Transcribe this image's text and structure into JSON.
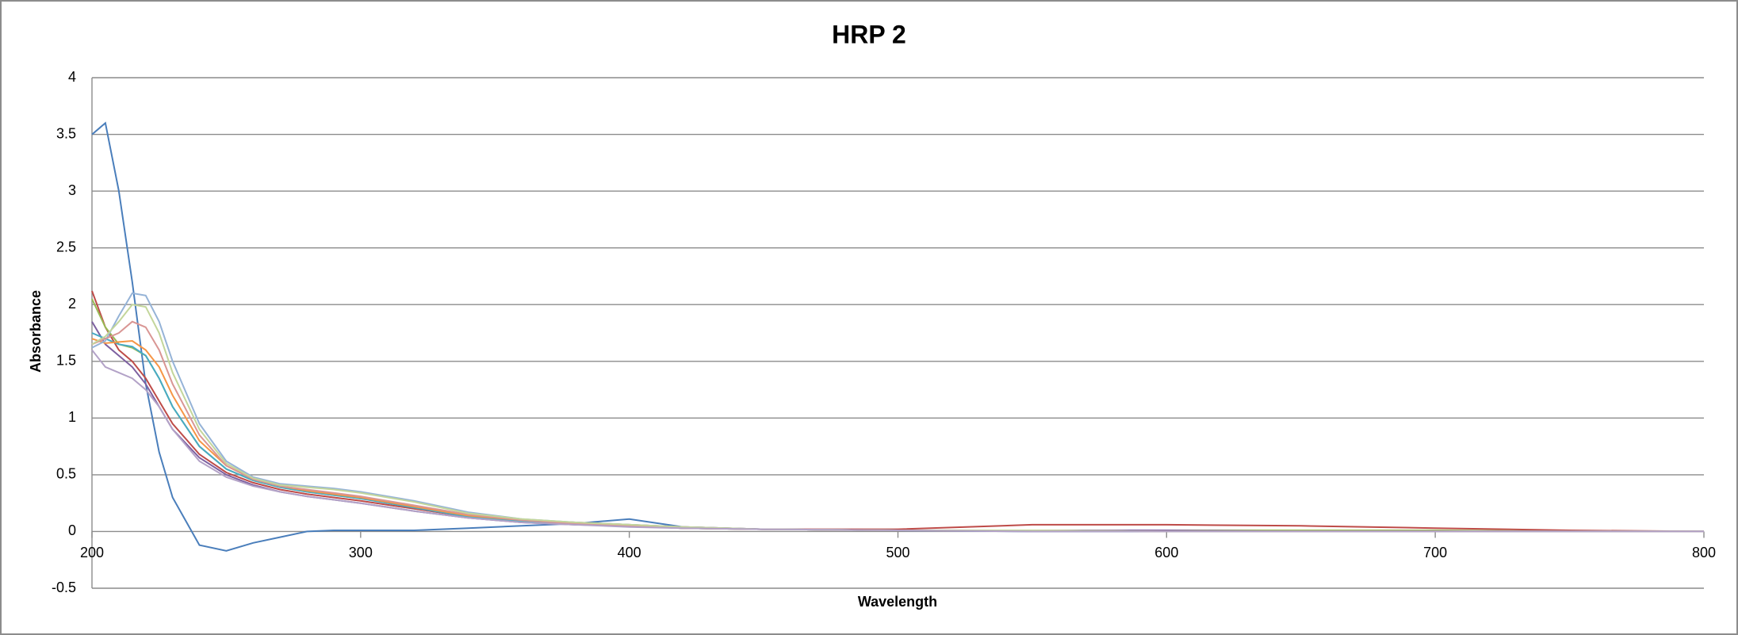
{
  "chart_data": {
    "type": "line",
    "title": "HRP 2",
    "x_label": "Wavelength",
    "y_label": "Absorbance",
    "x": [
      200,
      205,
      210,
      215,
      220,
      225,
      230,
      240,
      250,
      260,
      270,
      280,
      290,
      300,
      320,
      340,
      360,
      380,
      400,
      420,
      450,
      500,
      550,
      600,
      650,
      700,
      750,
      800
    ],
    "xlim": [
      200,
      800
    ],
    "xticks": [
      200,
      300,
      400,
      500,
      600,
      700,
      800
    ],
    "ylim": [
      -0.5,
      4
    ],
    "yticks": [
      -0.5,
      0,
      0.5,
      1,
      1.5,
      2,
      2.5,
      3,
      3.5,
      4
    ],
    "grid": true,
    "series": [
      {
        "color": "#4a7ebb",
        "values": [
          3.5,
          3.6,
          3.0,
          2.2,
          1.3,
          0.7,
          0.3,
          -0.12,
          -0.17,
          -0.1,
          -0.05,
          0,
          0.01,
          0.01,
          0.01,
          0.03,
          0.05,
          0.07,
          0.11,
          0.04,
          0.02,
          0.01,
          0,
          0,
          0,
          0,
          0,
          0
        ]
      },
      {
        "color": "#be4b48",
        "values": [
          2.12,
          1.8,
          1.6,
          1.5,
          1.35,
          1.15,
          0.95,
          0.68,
          0.52,
          0.43,
          0.37,
          0.33,
          0.3,
          0.27,
          0.2,
          0.13,
          0.1,
          0.08,
          0.06,
          0.04,
          0.02,
          0.02,
          0.06,
          0.06,
          0.05,
          0.03,
          0.01,
          0
        ]
      },
      {
        "color": "#98b954",
        "values": [
          2.05,
          1.8,
          1.65,
          1.62,
          1.55,
          1.35,
          1.1,
          0.75,
          0.55,
          0.45,
          0.39,
          0.35,
          0.32,
          0.29,
          0.22,
          0.14,
          0.1,
          0.07,
          0.05,
          0.03,
          0.02,
          0.01,
          0.01,
          0.01,
          0.01,
          0.01,
          0,
          0
        ]
      },
      {
        "color": "#7d60a0",
        "values": [
          1.85,
          1.65,
          1.55,
          1.45,
          1.3,
          1.1,
          0.9,
          0.65,
          0.5,
          0.41,
          0.35,
          0.31,
          0.28,
          0.25,
          0.18,
          0.12,
          0.08,
          0.06,
          0.05,
          0.03,
          0.02,
          0.01,
          0.01,
          0.01,
          0,
          0,
          0,
          0
        ]
      },
      {
        "color": "#46aac5",
        "values": [
          1.75,
          1.7,
          1.65,
          1.63,
          1.55,
          1.35,
          1.1,
          0.75,
          0.55,
          0.45,
          0.39,
          0.35,
          0.32,
          0.29,
          0.21,
          0.13,
          0.09,
          0.07,
          0.05,
          0.03,
          0.02,
          0.01,
          0.01,
          0,
          0,
          0,
          0,
          0
        ]
      },
      {
        "color": "#f69545",
        "values": [
          1.7,
          1.66,
          1.67,
          1.68,
          1.6,
          1.45,
          1.2,
          0.8,
          0.58,
          0.46,
          0.4,
          0.36,
          0.33,
          0.3,
          0.22,
          0.14,
          0.1,
          0.07,
          0.05,
          0.03,
          0.02,
          0.01,
          0.01,
          0,
          0,
          0,
          0,
          0
        ]
      },
      {
        "color": "#95b3d7",
        "values": [
          1.62,
          1.68,
          1.9,
          2.1,
          2.08,
          1.85,
          1.5,
          0.95,
          0.62,
          0.48,
          0.42,
          0.4,
          0.38,
          0.35,
          0.27,
          0.17,
          0.11,
          0.08,
          0.06,
          0.04,
          0.02,
          0.01,
          0.01,
          0,
          0,
          0,
          0,
          0
        ]
      },
      {
        "color": "#d99694",
        "values": [
          1.65,
          1.7,
          1.75,
          1.85,
          1.8,
          1.6,
          1.3,
          0.85,
          0.58,
          0.46,
          0.4,
          0.37,
          0.34,
          0.31,
          0.23,
          0.15,
          0.1,
          0.07,
          0.05,
          0.03,
          0.02,
          0.01,
          0.01,
          0,
          0,
          0,
          0,
          0
        ]
      },
      {
        "color": "#c3d69b",
        "values": [
          1.65,
          1.72,
          1.85,
          2.0,
          1.98,
          1.75,
          1.4,
          0.9,
          0.6,
          0.47,
          0.41,
          0.39,
          0.37,
          0.34,
          0.26,
          0.16,
          0.11,
          0.08,
          0.06,
          0.04,
          0.02,
          0.01,
          0.01,
          0,
          0,
          0,
          0,
          0
        ]
      },
      {
        "color": "#b3a2c7",
        "values": [
          1.6,
          1.45,
          1.4,
          1.35,
          1.25,
          1.1,
          0.9,
          0.62,
          0.48,
          0.4,
          0.35,
          0.31,
          0.28,
          0.25,
          0.18,
          0.12,
          0.08,
          0.06,
          0.04,
          0.03,
          0.02,
          0.01,
          0,
          0,
          0,
          0,
          0,
          0
        ]
      }
    ]
  }
}
